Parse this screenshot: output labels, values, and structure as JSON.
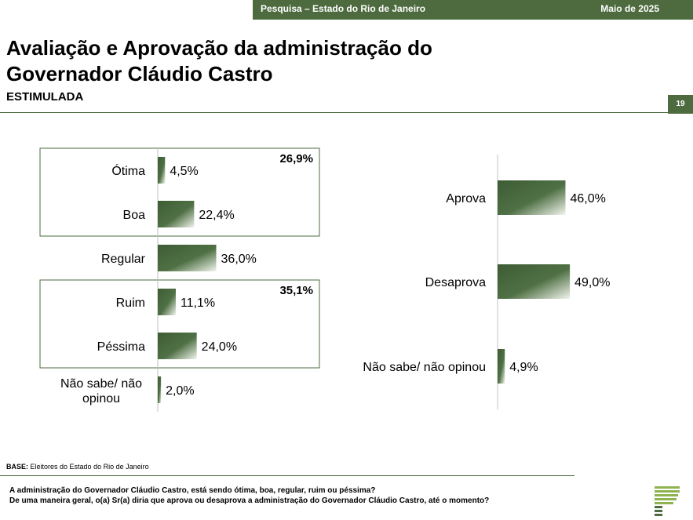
{
  "header": {
    "survey": "Pesquisa – Estado do Rio de Janeiro",
    "date": "Maio de 2025",
    "title": "Avaliação e Aprovação da administração do Governador Cláudio Castro",
    "subtitle": "ESTIMULADA",
    "page_number": "19"
  },
  "colors": {
    "brand": "#4d6b3f",
    "bar_dark": "#3e5c35",
    "bar_light": "#f2f5ee"
  },
  "chart_data": [
    {
      "type": "bar",
      "orientation": "horizontal",
      "categories": [
        "Ótima",
        "Boa",
        "Regular",
        "Ruim",
        "Péssima",
        "Não sabe/ não opinou"
      ],
      "values": [
        4.5,
        22.4,
        36.0,
        11.1,
        24.0,
        2.0
      ],
      "value_labels": [
        "4,5%",
        "22,4%",
        "36,0%",
        "11,1%",
        "24,0%",
        "2,0%"
      ],
      "groups": [
        {
          "categories": [
            "Ótima",
            "Boa"
          ],
          "total_label": "26,9%"
        },
        {
          "categories": [
            "Ruim",
            "Péssima"
          ],
          "total_label": "35,1%"
        }
      ]
    },
    {
      "type": "bar",
      "orientation": "horizontal",
      "categories": [
        "Aprova",
        "Desaprova",
        "Não sabe/ não opinou"
      ],
      "values": [
        46.0,
        49.0,
        4.9
      ],
      "value_labels": [
        "46,0%",
        "49,0%",
        "4,9%"
      ]
    }
  ],
  "footer": {
    "base_label": "BASE:",
    "base_text": " Eleitores do Estado do Rio de Janeiro",
    "question1": "A administração do Governador Cláudio Castro, está sendo ótima, boa, regular, ruim ou péssima?",
    "question2": "De uma maneira geral, o(a) Sr(a) diria que aprova ou desaprova a administração do Governador Cláudio Castro, até o momento?"
  }
}
